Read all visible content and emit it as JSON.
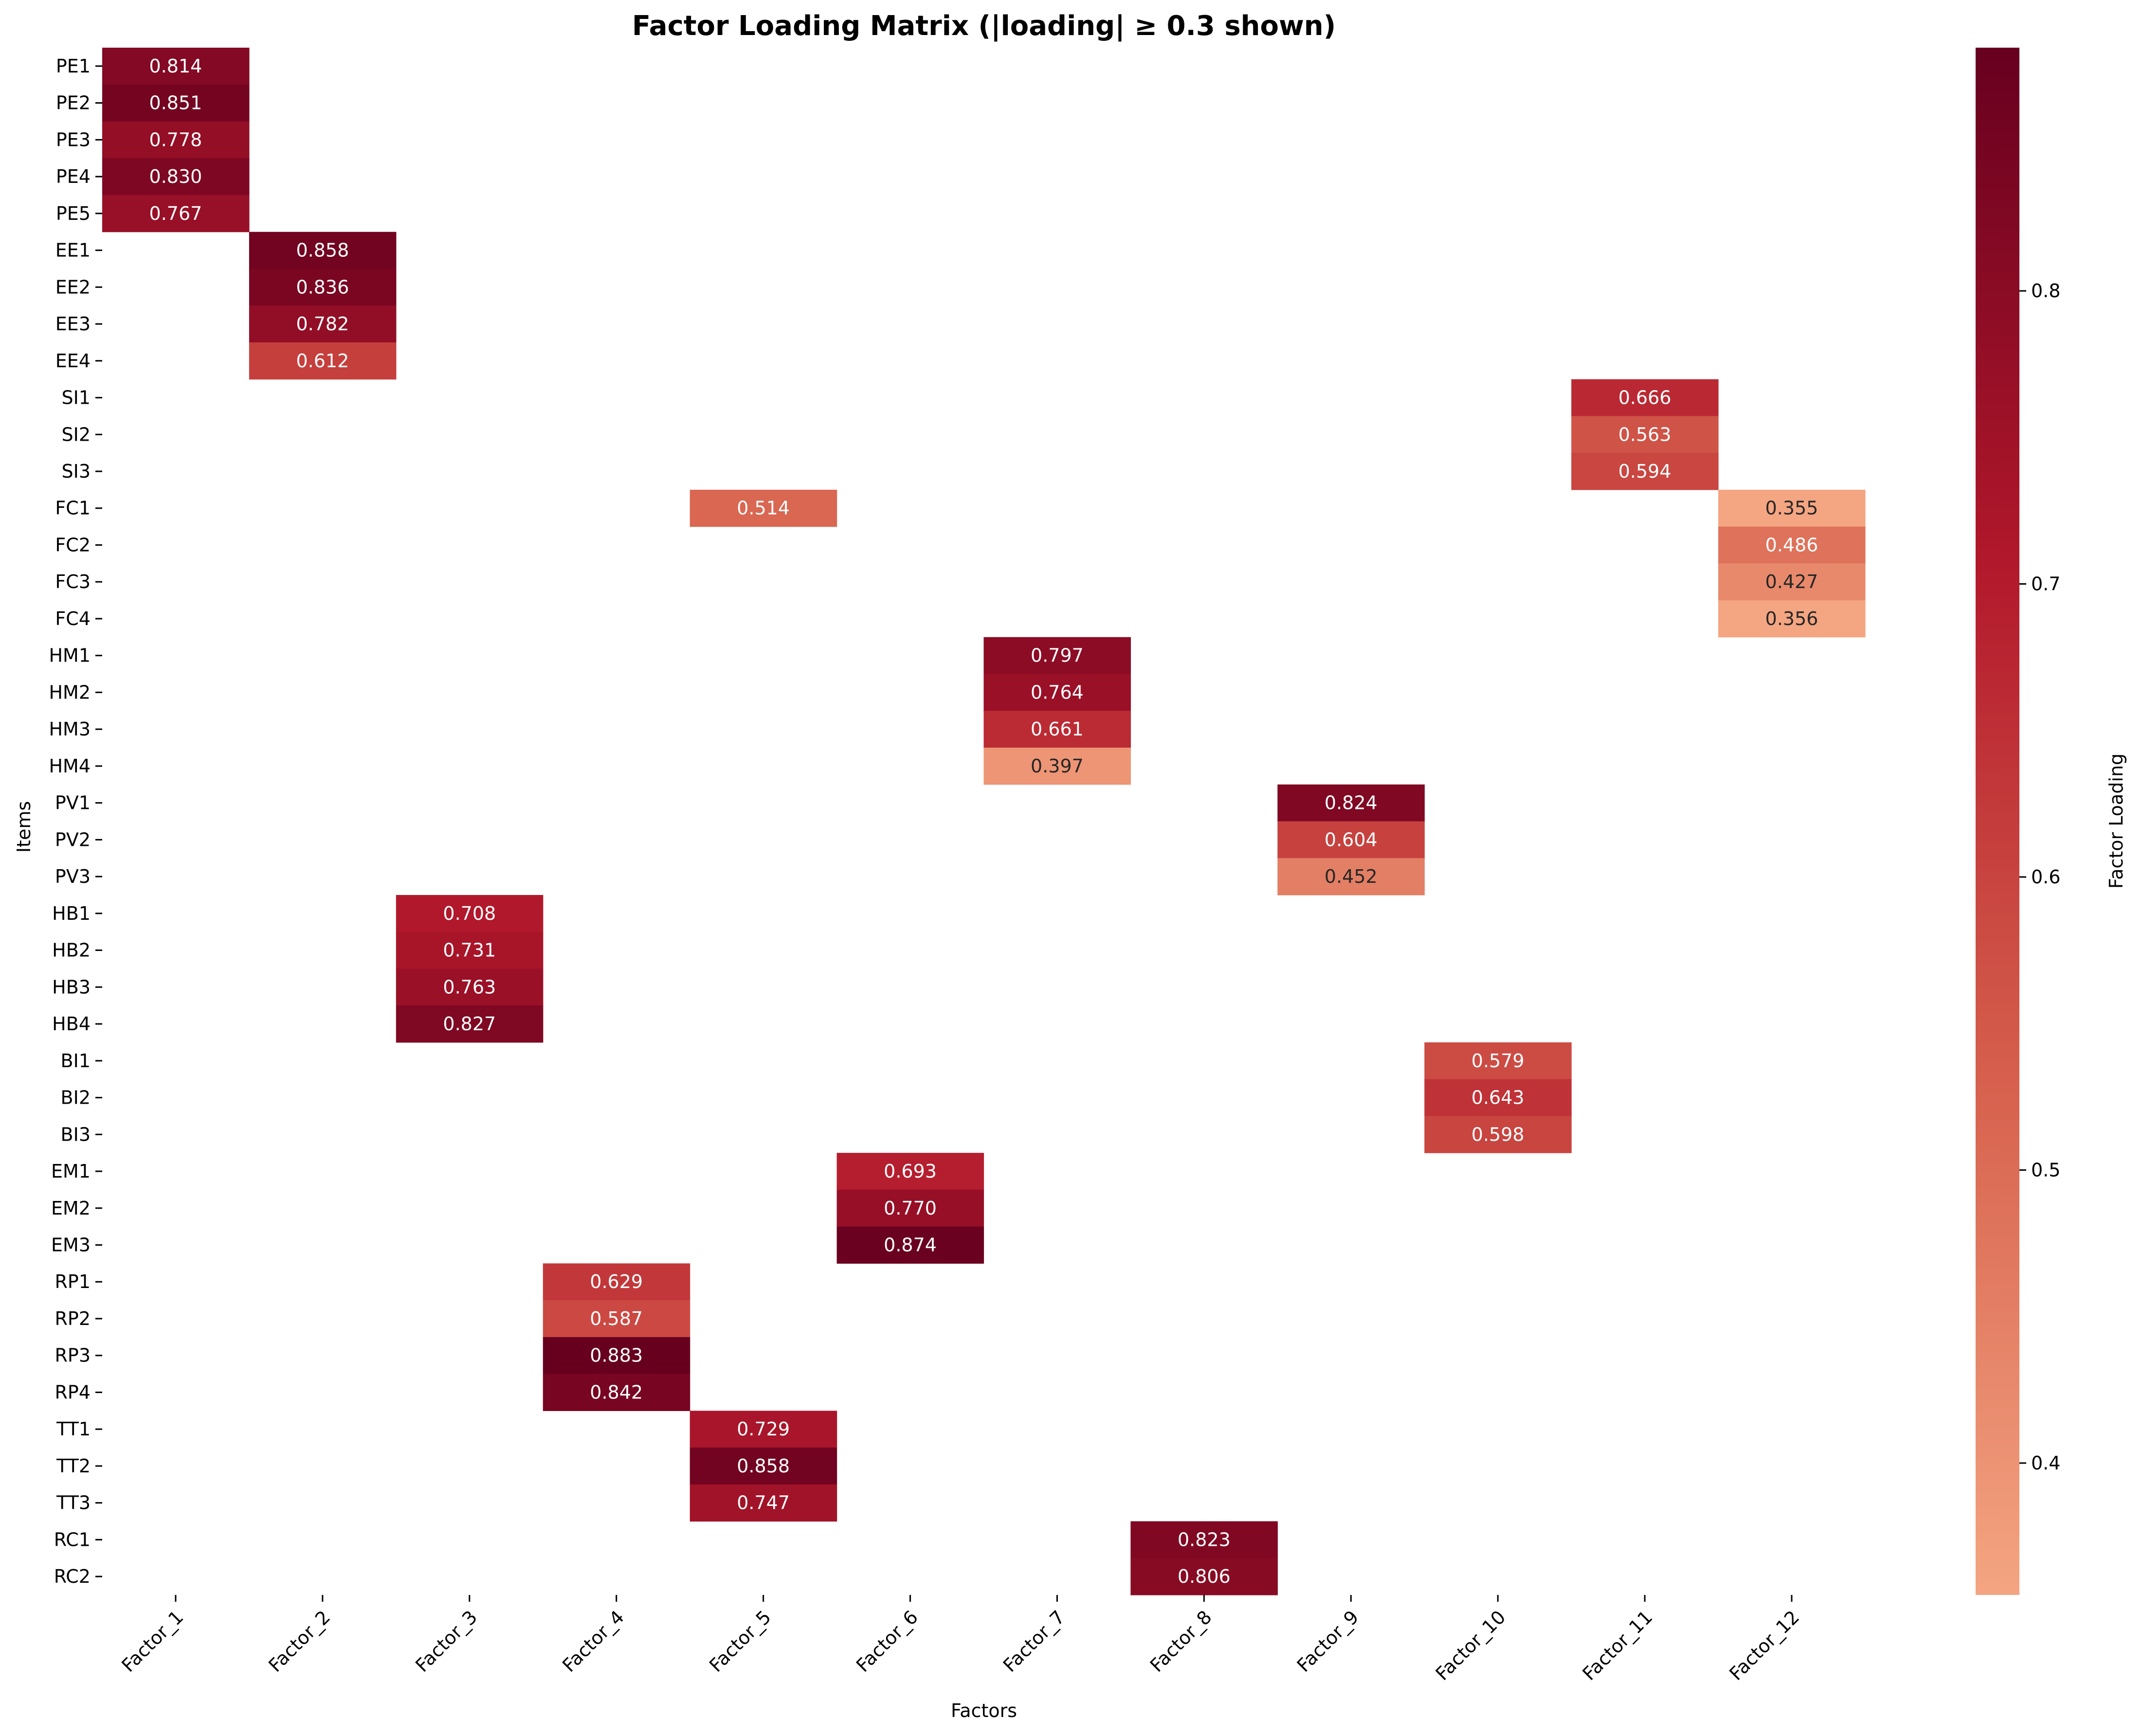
{
  "chart_data": {
    "type": "heatmap",
    "title": "Factor Loading Matrix (|loading| ≥ 0.3 shown)",
    "xlabel": "Factors",
    "ylabel": "Items",
    "colorbar_label": "Factor Loading",
    "value_format": "3 decimals",
    "color_range": [
      0.355,
      0.883
    ],
    "colorbar_ticks": [
      "0.4",
      "0.5",
      "0.6",
      "0.7",
      "0.8"
    ],
    "colormap": [
      "#f4a582",
      "#d6604d",
      "#b2182b",
      "#67001f"
    ],
    "x": [
      "Factor_1",
      "Factor_2",
      "Factor_3",
      "Factor_4",
      "Factor_5",
      "Factor_6",
      "Factor_7",
      "Factor_8",
      "Factor_9",
      "Factor_10",
      "Factor_11",
      "Factor_12"
    ],
    "y": [
      "PE1",
      "PE2",
      "PE3",
      "PE4",
      "PE5",
      "EE1",
      "EE2",
      "EE3",
      "EE4",
      "SI1",
      "SI2",
      "SI3",
      "FC1",
      "FC2",
      "FC3",
      "FC4",
      "HM1",
      "HM2",
      "HM3",
      "HM4",
      "PV1",
      "PV2",
      "PV3",
      "HB1",
      "HB2",
      "HB3",
      "HB4",
      "BI1",
      "BI2",
      "BI3",
      "EM1",
      "EM2",
      "EM3",
      "RP1",
      "RP2",
      "RP3",
      "RP4",
      "TT1",
      "TT2",
      "TT3",
      "RC1",
      "RC2"
    ],
    "values": [
      [
        0.814,
        null,
        null,
        null,
        null,
        null,
        null,
        null,
        null,
        null,
        null,
        null
      ],
      [
        0.851,
        null,
        null,
        null,
        null,
        null,
        null,
        null,
        null,
        null,
        null,
        null
      ],
      [
        0.778,
        null,
        null,
        null,
        null,
        null,
        null,
        null,
        null,
        null,
        null,
        null
      ],
      [
        0.83,
        null,
        null,
        null,
        null,
        null,
        null,
        null,
        null,
        null,
        null,
        null
      ],
      [
        0.767,
        null,
        null,
        null,
        null,
        null,
        null,
        null,
        null,
        null,
        null,
        null
      ],
      [
        null,
        0.858,
        null,
        null,
        null,
        null,
        null,
        null,
        null,
        null,
        null,
        null
      ],
      [
        null,
        0.836,
        null,
        null,
        null,
        null,
        null,
        null,
        null,
        null,
        null,
        null
      ],
      [
        null,
        0.782,
        null,
        null,
        null,
        null,
        null,
        null,
        null,
        null,
        null,
        null
      ],
      [
        null,
        0.612,
        null,
        null,
        null,
        null,
        null,
        null,
        null,
        null,
        null,
        null
      ],
      [
        null,
        null,
        null,
        null,
        null,
        null,
        null,
        null,
        null,
        null,
        0.666,
        null
      ],
      [
        null,
        null,
        null,
        null,
        null,
        null,
        null,
        null,
        null,
        null,
        0.563,
        null
      ],
      [
        null,
        null,
        null,
        null,
        null,
        null,
        null,
        null,
        null,
        null,
        0.594,
        null
      ],
      [
        null,
        null,
        null,
        null,
        0.514,
        null,
        null,
        null,
        null,
        null,
        null,
        0.355
      ],
      [
        null,
        null,
        null,
        null,
        null,
        null,
        null,
        null,
        null,
        null,
        null,
        0.486
      ],
      [
        null,
        null,
        null,
        null,
        null,
        null,
        null,
        null,
        null,
        null,
        null,
        0.427
      ],
      [
        null,
        null,
        null,
        null,
        null,
        null,
        null,
        null,
        null,
        null,
        null,
        0.356
      ],
      [
        null,
        null,
        null,
        null,
        null,
        null,
        0.797,
        null,
        null,
        null,
        null,
        null
      ],
      [
        null,
        null,
        null,
        null,
        null,
        null,
        0.764,
        null,
        null,
        null,
        null,
        null
      ],
      [
        null,
        null,
        null,
        null,
        null,
        null,
        0.661,
        null,
        null,
        null,
        null,
        null
      ],
      [
        null,
        null,
        null,
        null,
        null,
        null,
        0.397,
        null,
        null,
        null,
        null,
        null
      ],
      [
        null,
        null,
        null,
        null,
        null,
        null,
        null,
        null,
        0.824,
        null,
        null,
        null
      ],
      [
        null,
        null,
        null,
        null,
        null,
        null,
        null,
        null,
        0.604,
        null,
        null,
        null
      ],
      [
        null,
        null,
        null,
        null,
        null,
        null,
        null,
        null,
        0.452,
        null,
        null,
        null
      ],
      [
        null,
        null,
        0.708,
        null,
        null,
        null,
        null,
        null,
        null,
        null,
        null,
        null
      ],
      [
        null,
        null,
        0.731,
        null,
        null,
        null,
        null,
        null,
        null,
        null,
        null,
        null
      ],
      [
        null,
        null,
        0.763,
        null,
        null,
        null,
        null,
        null,
        null,
        null,
        null,
        null
      ],
      [
        null,
        null,
        0.827,
        null,
        null,
        null,
        null,
        null,
        null,
        null,
        null,
        null
      ],
      [
        null,
        null,
        null,
        null,
        null,
        null,
        null,
        null,
        null,
        0.579,
        null,
        null
      ],
      [
        null,
        null,
        null,
        null,
        null,
        null,
        null,
        null,
        null,
        0.643,
        null,
        null
      ],
      [
        null,
        null,
        null,
        null,
        null,
        null,
        null,
        null,
        null,
        0.598,
        null,
        null
      ],
      [
        null,
        null,
        null,
        null,
        null,
        0.693,
        null,
        null,
        null,
        null,
        null,
        null
      ],
      [
        null,
        null,
        null,
        null,
        null,
        0.77,
        null,
        null,
        null,
        null,
        null,
        null
      ],
      [
        null,
        null,
        null,
        null,
        null,
        0.874,
        null,
        null,
        null,
        null,
        null,
        null
      ],
      [
        null,
        null,
        null,
        0.629,
        null,
        null,
        null,
        null,
        null,
        null,
        null,
        null
      ],
      [
        null,
        null,
        null,
        0.587,
        null,
        null,
        null,
        null,
        null,
        null,
        null,
        null
      ],
      [
        null,
        null,
        null,
        0.883,
        null,
        null,
        null,
        null,
        null,
        null,
        null,
        null
      ],
      [
        null,
        null,
        null,
        0.842,
        null,
        null,
        null,
        null,
        null,
        null,
        null,
        null
      ],
      [
        null,
        null,
        null,
        null,
        0.729,
        null,
        null,
        null,
        null,
        null,
        null,
        null
      ],
      [
        null,
        null,
        null,
        null,
        0.858,
        null,
        null,
        null,
        null,
        null,
        null,
        null
      ],
      [
        null,
        null,
        null,
        null,
        0.747,
        null,
        null,
        null,
        null,
        null,
        null,
        null
      ],
      [
        null,
        null,
        null,
        null,
        null,
        null,
        null,
        0.823,
        null,
        null,
        null,
        null
      ],
      [
        null,
        null,
        null,
        null,
        null,
        null,
        null,
        0.806,
        null,
        null,
        null,
        null
      ]
    ]
  }
}
